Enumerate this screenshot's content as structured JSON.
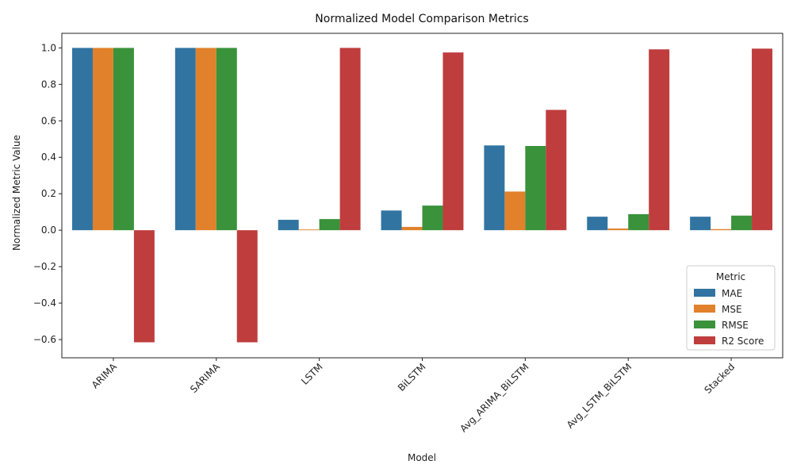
{
  "chart_data": {
    "type": "bar",
    "title": "Normalized Model Comparison Metrics",
    "xlabel": "Model",
    "ylabel": "Normalized Metric Value",
    "categories": [
      "ARIMA",
      "SARIMA",
      "LSTM",
      "BiLSTM",
      "Avg_ARIMA_BiLSTM",
      "Avg_LSTM_BiLSTM",
      "Stacked"
    ],
    "series": [
      {
        "name": "MAE",
        "color": "#3274a1",
        "values": [
          1.0,
          1.0,
          0.057,
          0.108,
          0.465,
          0.074,
          0.074
        ]
      },
      {
        "name": "MSE",
        "color": "#e1812c",
        "values": [
          1.0,
          1.0,
          0.004,
          0.018,
          0.212,
          0.009,
          0.006
        ]
      },
      {
        "name": "RMSE",
        "color": "#3a923a",
        "values": [
          1.0,
          1.0,
          0.061,
          0.135,
          0.462,
          0.088,
          0.08
        ]
      },
      {
        "name": "R2 Score",
        "color": "#c03d3e",
        "values": [
          -0.615,
          -0.615,
          1.0,
          0.975,
          0.66,
          0.992,
          0.996
        ]
      }
    ],
    "ylim": [
      -0.7,
      1.08
    ],
    "yticks": [
      -0.6,
      -0.4,
      -0.2,
      0.0,
      0.2,
      0.4,
      0.6,
      0.8,
      1.0
    ],
    "ytick_labels": [
      "−0.6",
      "−0.4",
      "−0.2",
      "0.0",
      "0.2",
      "0.4",
      "0.6",
      "0.8",
      "1.0"
    ],
    "grid": false,
    "legend": {
      "title": "Metric",
      "placement": "lower-right"
    },
    "xtick_rotation": 45
  }
}
